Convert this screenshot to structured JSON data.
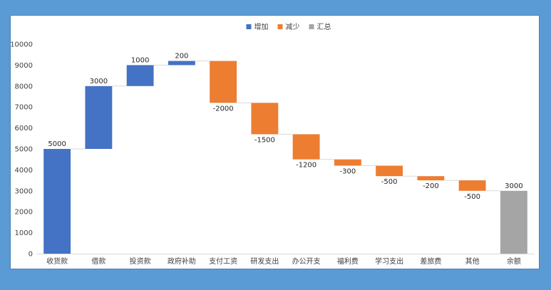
{
  "chart_data": {
    "type": "waterfall",
    "title": "",
    "xlabel": "",
    "ylabel": "",
    "ylim": [
      0,
      10000
    ],
    "yticks": [
      0,
      1000,
      2000,
      3000,
      4000,
      5000,
      6000,
      7000,
      8000,
      9000,
      10000
    ],
    "grid": false,
    "legend_position": "top-center",
    "legend": [
      {
        "key": "increase",
        "label": "增加",
        "color": "#4472c4"
      },
      {
        "key": "decrease",
        "label": "减少",
        "color": "#ed7d31"
      },
      {
        "key": "total",
        "label": "汇总",
        "color": "#a5a5a5"
      }
    ],
    "categories": [
      "收货款",
      "借款",
      "投资款",
      "政府补助",
      "支付工资",
      "研发支出",
      "办公开支",
      "福利费",
      "学习支出",
      "差旅费",
      "其他",
      "余额"
    ],
    "values": [
      5000,
      3000,
      1000,
      200,
      -2000,
      -1500,
      -1200,
      -300,
      -500,
      -200,
      -500,
      3000
    ],
    "kinds": [
      "increase",
      "increase",
      "increase",
      "increase",
      "decrease",
      "decrease",
      "decrease",
      "decrease",
      "decrease",
      "decrease",
      "decrease",
      "total"
    ],
    "data_labels": [
      "5000",
      "3000",
      "1000",
      "200",
      "-2000",
      "-1500",
      "-1200",
      "-300",
      "-500",
      "-200",
      "-500",
      "3000"
    ]
  }
}
